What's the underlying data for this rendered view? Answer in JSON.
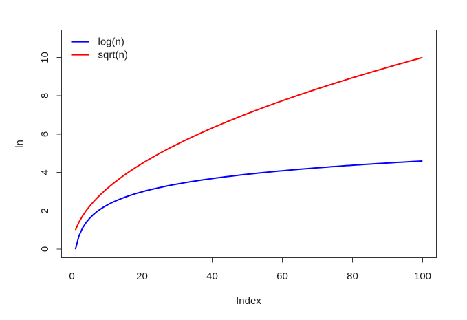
{
  "figure": {
    "background": "#ffffff",
    "axis_color": "#333333",
    "text_color": "#1a1a1a"
  },
  "chart_data": {
    "type": "line",
    "title": "",
    "xlabel": "Index",
    "ylabel": "ln",
    "grid": false,
    "x_axis": {
      "ticks": [
        "0",
        "20",
        "40",
        "60",
        "80",
        "100"
      ],
      "range_usr": [
        -2.96,
        103.96
      ]
    },
    "y_axis": {
      "ticks": [
        "0",
        "2",
        "4",
        "6",
        "8",
        "10"
      ],
      "range_usr": [
        -0.44,
        11.44
      ]
    },
    "legend": {
      "position": "topleft",
      "entries": [
        {
          "label": "log(n)",
          "color": "#0000ff"
        },
        {
          "label": "sqrt(n)",
          "color": "#ff0000"
        }
      ]
    },
    "x": [
      1,
      2,
      3,
      4,
      5,
      6,
      7,
      8,
      9,
      10,
      11,
      12,
      13,
      14,
      15,
      16,
      17,
      18,
      19,
      20,
      21,
      22,
      23,
      24,
      25,
      26,
      27,
      28,
      29,
      30,
      31,
      32,
      33,
      34,
      35,
      36,
      37,
      38,
      39,
      40,
      41,
      42,
      43,
      44,
      45,
      46,
      47,
      48,
      49,
      50,
      51,
      52,
      53,
      54,
      55,
      56,
      57,
      58,
      59,
      60,
      61,
      62,
      63,
      64,
      65,
      66,
      67,
      68,
      69,
      70,
      71,
      72,
      73,
      74,
      75,
      76,
      77,
      78,
      79,
      80,
      81,
      82,
      83,
      84,
      85,
      86,
      87,
      88,
      89,
      90,
      91,
      92,
      93,
      94,
      95,
      96,
      97,
      98,
      99,
      100
    ],
    "series": [
      {
        "name": "log(n)",
        "color": "#0000ff",
        "values": [
          0,
          0.693,
          1.099,
          1.386,
          1.609,
          1.792,
          1.946,
          2.079,
          2.197,
          2.303,
          2.398,
          2.485,
          2.565,
          2.639,
          2.708,
          2.773,
          2.833,
          2.89,
          2.944,
          2.996,
          3.045,
          3.091,
          3.135,
          3.178,
          3.219,
          3.258,
          3.296,
          3.332,
          3.367,
          3.401,
          3.434,
          3.466,
          3.497,
          3.526,
          3.555,
          3.584,
          3.611,
          3.638,
          3.664,
          3.689,
          3.714,
          3.738,
          3.761,
          3.784,
          3.807,
          3.829,
          3.85,
          3.871,
          3.892,
          3.912,
          3.932,
          3.951,
          3.97,
          3.989,
          4.007,
          4.025,
          4.043,
          4.06,
          4.078,
          4.094,
          4.111,
          4.127,
          4.143,
          4.159,
          4.174,
          4.19,
          4.205,
          4.22,
          4.234,
          4.248,
          4.263,
          4.277,
          4.29,
          4.304,
          4.317,
          4.331,
          4.344,
          4.357,
          4.369,
          4.382,
          4.394,
          4.407,
          4.419,
          4.431,
          4.443,
          4.454,
          4.466,
          4.477,
          4.489,
          4.5,
          4.511,
          4.522,
          4.533,
          4.543,
          4.554,
          4.564,
          4.575,
          4.585,
          4.595,
          4.605
        ]
      },
      {
        "name": "sqrt(n)",
        "color": "#ff0000",
        "values": [
          1,
          1.414,
          1.732,
          2,
          2.236,
          2.449,
          2.646,
          2.828,
          3,
          3.162,
          3.317,
          3.464,
          3.606,
          3.742,
          3.873,
          4,
          4.123,
          4.243,
          4.359,
          4.472,
          4.583,
          4.69,
          4.796,
          4.899,
          5,
          5.099,
          5.196,
          5.292,
          5.385,
          5.477,
          5.568,
          5.657,
          5.745,
          5.831,
          5.916,
          6,
          6.083,
          6.164,
          6.245,
          6.325,
          6.403,
          6.481,
          6.557,
          6.633,
          6.708,
          6.782,
          6.856,
          6.928,
          7,
          7.071,
          7.141,
          7.211,
          7.28,
          7.348,
          7.416,
          7.483,
          7.55,
          7.616,
          7.681,
          7.746,
          7.81,
          7.874,
          7.937,
          8,
          8.062,
          8.124,
          8.185,
          8.246,
          8.307,
          8.367,
          8.426,
          8.485,
          8.544,
          8.602,
          8.66,
          8.718,
          8.775,
          8.832,
          8.888,
          8.944,
          9,
          9.055,
          9.11,
          9.165,
          9.22,
          9.274,
          9.327,
          9.381,
          9.434,
          9.487,
          9.539,
          9.592,
          9.644,
          9.695,
          9.747,
          9.798,
          9.849,
          9.899,
          9.95,
          10
        ]
      }
    ]
  }
}
